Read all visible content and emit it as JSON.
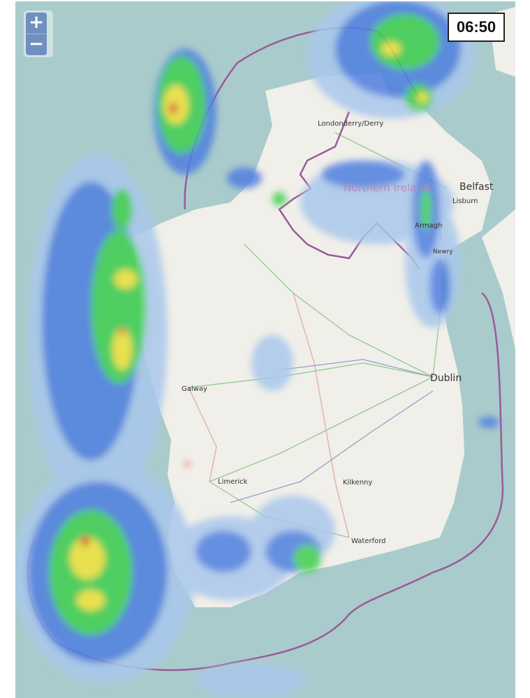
{
  "map": {
    "time": "06:50",
    "zoom_in_label": "+",
    "zoom_out_label": "−",
    "places": {
      "derry": "Londonderry/Derry",
      "northern_ireland": "Northern Ireland",
      "belfast": "Belfast",
      "lisburn": "Lisburn",
      "armagh": "Armagh",
      "newry": "Newry",
      "dublin": "Dublin",
      "galway": "Galway",
      "limerick": "Limerick",
      "kilkenny": "Kilkenny",
      "waterford": "Waterford"
    },
    "colors": {
      "sea": "#aacbcb",
      "land": "#f1efe9",
      "border": "#9a5a9a",
      "radar_light": "#a9c8ec",
      "radar_blue": "#4f7fe0",
      "radar_green": "#3fcf4f",
      "radar_yellow": "#f4e43a",
      "radar_red": "#e0402a"
    }
  }
}
